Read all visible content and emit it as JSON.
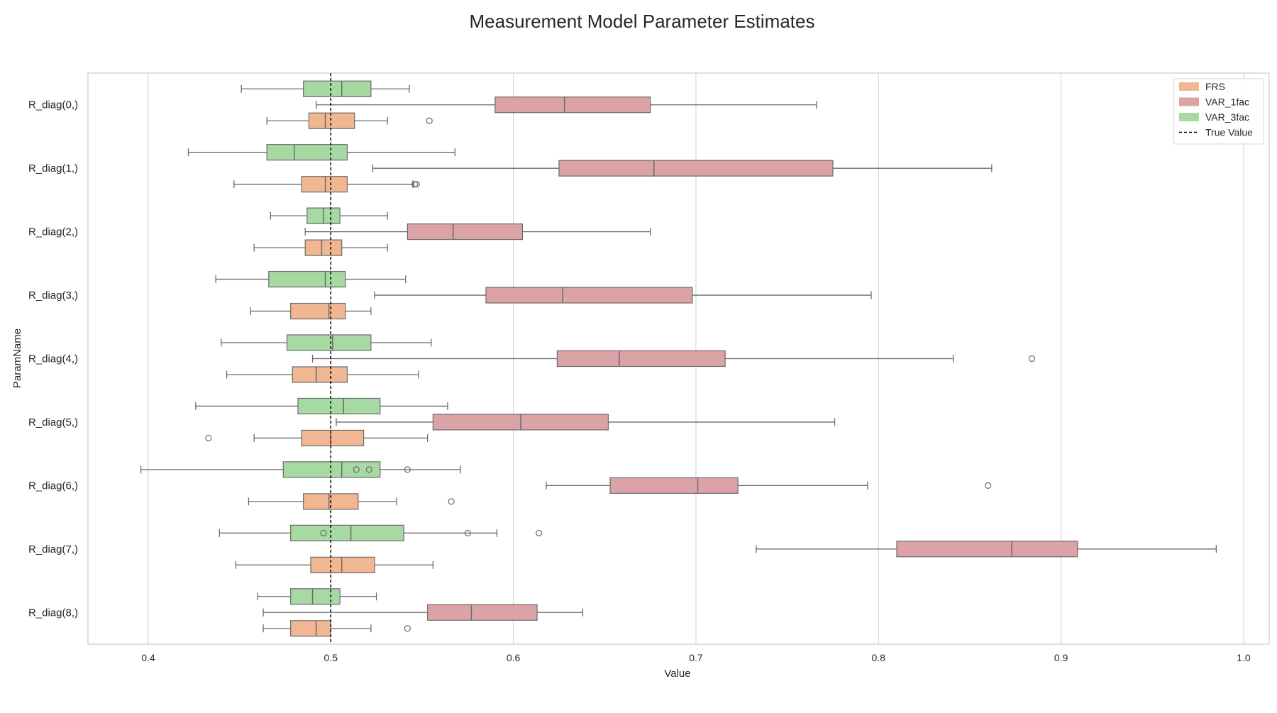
{
  "chart_data": {
    "type": "boxplot",
    "orientation": "horizontal",
    "title": "Measurement Model Parameter Estimates",
    "xlabel": "Value",
    "ylabel": "ParamName",
    "xlim": [
      0.367,
      1.014
    ],
    "xticks": [
      0.4,
      0.5,
      0.6,
      0.7,
      0.8,
      0.9,
      1.0
    ],
    "xtick_labels": [
      "0.4",
      "0.5",
      "0.6",
      "0.7",
      "0.8",
      "0.9",
      "1.0"
    ],
    "grid": "vertical",
    "legend_position": "top-right",
    "categories": [
      "R_diag(0,)",
      "R_diag(1,)",
      "R_diag(2,)",
      "R_diag(3,)",
      "R_diag(4,)",
      "R_diag(5,)",
      "R_diag(6,)",
      "R_diag(7,)",
      "R_diag(8,)"
    ],
    "true_value": 0.5,
    "true_value_label": "True Value",
    "series": [
      {
        "name": "VAR_3fac",
        "color": "#a7d9a3",
        "boxes": [
          {
            "whislo": 0.451,
            "q1": 0.485,
            "med": 0.506,
            "q3": 0.522,
            "whishi": 0.543,
            "fliers": []
          },
          {
            "whislo": 0.422,
            "q1": 0.465,
            "med": 0.48,
            "q3": 0.509,
            "whishi": 0.568,
            "fliers": []
          },
          {
            "whislo": 0.467,
            "q1": 0.487,
            "med": 0.496,
            "q3": 0.505,
            "whishi": 0.531,
            "fliers": []
          },
          {
            "whislo": 0.437,
            "q1": 0.466,
            "med": 0.497,
            "q3": 0.508,
            "whishi": 0.541,
            "fliers": []
          },
          {
            "whislo": 0.44,
            "q1": 0.476,
            "med": 0.501,
            "q3": 0.522,
            "whishi": 0.555,
            "fliers": []
          },
          {
            "whislo": 0.426,
            "q1": 0.482,
            "med": 0.507,
            "q3": 0.527,
            "whishi": 0.564,
            "fliers": []
          },
          {
            "whislo": 0.396,
            "q1": 0.474,
            "med": 0.506,
            "q3": 0.527,
            "whishi": 0.571,
            "fliers": [
              0.514,
              0.521,
              0.542
            ]
          },
          {
            "whislo": 0.439,
            "q1": 0.478,
            "med": 0.511,
            "q3": 0.54,
            "whishi": 0.591,
            "fliers": [
              0.496,
              0.575,
              0.614
            ]
          },
          {
            "whislo": 0.46,
            "q1": 0.478,
            "med": 0.49,
            "q3": 0.505,
            "whishi": 0.525,
            "fliers": []
          }
        ]
      },
      {
        "name": "VAR_1fac",
        "color": "#dca3a6",
        "boxes": [
          {
            "whislo": 0.492,
            "q1": 0.59,
            "med": 0.628,
            "q3": 0.675,
            "whishi": 0.766,
            "fliers": []
          },
          {
            "whislo": 0.523,
            "q1": 0.625,
            "med": 0.677,
            "q3": 0.775,
            "whishi": 0.862,
            "fliers": []
          },
          {
            "whislo": 0.486,
            "q1": 0.542,
            "med": 0.567,
            "q3": 0.605,
            "whishi": 0.675,
            "fliers": []
          },
          {
            "whislo": 0.524,
            "q1": 0.585,
            "med": 0.627,
            "q3": 0.698,
            "whishi": 0.796,
            "fliers": []
          },
          {
            "whislo": 0.49,
            "q1": 0.624,
            "med": 0.658,
            "q3": 0.716,
            "whishi": 0.841,
            "fliers": [
              0.884
            ]
          },
          {
            "whislo": 0.503,
            "q1": 0.556,
            "med": 0.604,
            "q3": 0.652,
            "whishi": 0.776,
            "fliers": []
          },
          {
            "whislo": 0.618,
            "q1": 0.653,
            "med": 0.701,
            "q3": 0.723,
            "whishi": 0.794,
            "fliers": [
              0.86
            ]
          },
          {
            "whislo": 0.733,
            "q1": 0.81,
            "med": 0.873,
            "q3": 0.909,
            "whishi": 0.985,
            "fliers": []
          },
          {
            "whislo": 0.463,
            "q1": 0.553,
            "med": 0.577,
            "q3": 0.613,
            "whishi": 0.638,
            "fliers": []
          }
        ]
      },
      {
        "name": "FRS",
        "color": "#f0b792",
        "boxes": [
          {
            "whislo": 0.465,
            "q1": 0.488,
            "med": 0.497,
            "q3": 0.513,
            "whishi": 0.531,
            "fliers": [
              0.554
            ]
          },
          {
            "whislo": 0.447,
            "q1": 0.484,
            "med": 0.497,
            "q3": 0.509,
            "whishi": 0.545,
            "fliers": [
              0.546,
              0.547
            ]
          },
          {
            "whislo": 0.458,
            "q1": 0.486,
            "med": 0.495,
            "q3": 0.506,
            "whishi": 0.531,
            "fliers": []
          },
          {
            "whislo": 0.456,
            "q1": 0.478,
            "med": 0.499,
            "q3": 0.508,
            "whishi": 0.522,
            "fliers": []
          },
          {
            "whislo": 0.443,
            "q1": 0.479,
            "med": 0.492,
            "q3": 0.509,
            "whishi": 0.548,
            "fliers": []
          },
          {
            "whislo": 0.458,
            "q1": 0.484,
            "med": 0.5,
            "q3": 0.518,
            "whishi": 0.553,
            "fliers": [
              0.433
            ]
          },
          {
            "whislo": 0.455,
            "q1": 0.485,
            "med": 0.499,
            "q3": 0.515,
            "whishi": 0.536,
            "fliers": [
              0.566
            ]
          },
          {
            "whislo": 0.448,
            "q1": 0.489,
            "med": 0.506,
            "q3": 0.524,
            "whishi": 0.556,
            "fliers": []
          },
          {
            "whislo": 0.463,
            "q1": 0.478,
            "med": 0.492,
            "q3": 0.5,
            "whishi": 0.522,
            "fliers": [
              0.542
            ]
          }
        ]
      }
    ],
    "legend": {
      "entries": [
        {
          "label": "FRS",
          "color": "#f0b792",
          "kind": "patch"
        },
        {
          "label": "VAR_1fac",
          "color": "#dca3a6",
          "kind": "patch"
        },
        {
          "label": "VAR_3fac",
          "color": "#a7d9a3",
          "kind": "patch"
        },
        {
          "label": "True Value",
          "color": "#000000",
          "kind": "dashed-line"
        }
      ]
    }
  }
}
